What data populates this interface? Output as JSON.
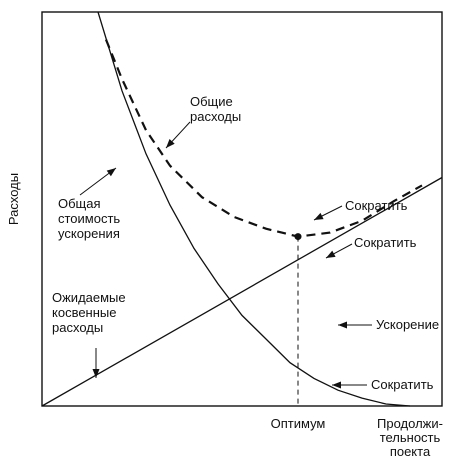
{
  "chart_data": {
    "type": "line",
    "xlabel": [
      "Продолжи-",
      "тельность",
      "поекта"
    ],
    "ylabel": "Расходы",
    "xlim": [
      0,
      100
    ],
    "ylim": [
      0,
      100
    ],
    "grid": false,
    "x_ticks": [
      {
        "x": 64,
        "label": "Оптимум"
      }
    ],
    "series": [
      {
        "name": "Общая стоимость ускорения",
        "style": "solid",
        "points": [
          [
            14,
            100
          ],
          [
            20,
            80
          ],
          [
            26,
            64
          ],
          [
            32,
            51
          ],
          [
            38,
            40
          ],
          [
            44,
            31
          ],
          [
            50,
            23
          ],
          [
            56,
            17
          ],
          [
            62,
            11
          ],
          [
            68,
            7
          ],
          [
            74,
            4
          ],
          [
            80,
            2
          ],
          [
            86,
            0.5
          ],
          [
            92,
            0
          ]
        ]
      },
      {
        "name": "Ожидаемые косвенные расходы",
        "style": "solid",
        "points": [
          [
            0,
            0
          ],
          [
            100,
            58
          ]
        ]
      },
      {
        "name": "Общие расходы",
        "style": "dashed",
        "points": [
          [
            16,
            93
          ],
          [
            20,
            83
          ],
          [
            26,
            70
          ],
          [
            32,
            61
          ],
          [
            40,
            53
          ],
          [
            48,
            48
          ],
          [
            56,
            45
          ],
          [
            64,
            43
          ],
          [
            72,
            44
          ],
          [
            80,
            47
          ],
          [
            88,
            52
          ],
          [
            95,
            56
          ]
        ]
      }
    ],
    "optimum_point": {
      "x": 64,
      "y": 43
    },
    "annotations": [
      {
        "lines": [
          "Общие",
          "расходы"
        ],
        "target": "Общие расходы"
      },
      {
        "lines": [
          "Общая",
          "стоимость",
          "ускорения"
        ],
        "target": "Общая стоимость ускорения"
      },
      {
        "lines": [
          "Ожидаемые",
          "косвенные",
          "расходы"
        ],
        "target": "Ожидаемые косвенные расходы"
      },
      {
        "lines": [
          "Сократить"
        ],
        "target": "Общие расходы"
      },
      {
        "lines": [
          "Сократить"
        ],
        "target": "Ожидаемые косвенные расходы"
      },
      {
        "lines": [
          "Ускорение"
        ],
        "target": ""
      },
      {
        "lines": [
          "Сократить"
        ],
        "target": "Общая стоимость ускорения"
      }
    ]
  }
}
